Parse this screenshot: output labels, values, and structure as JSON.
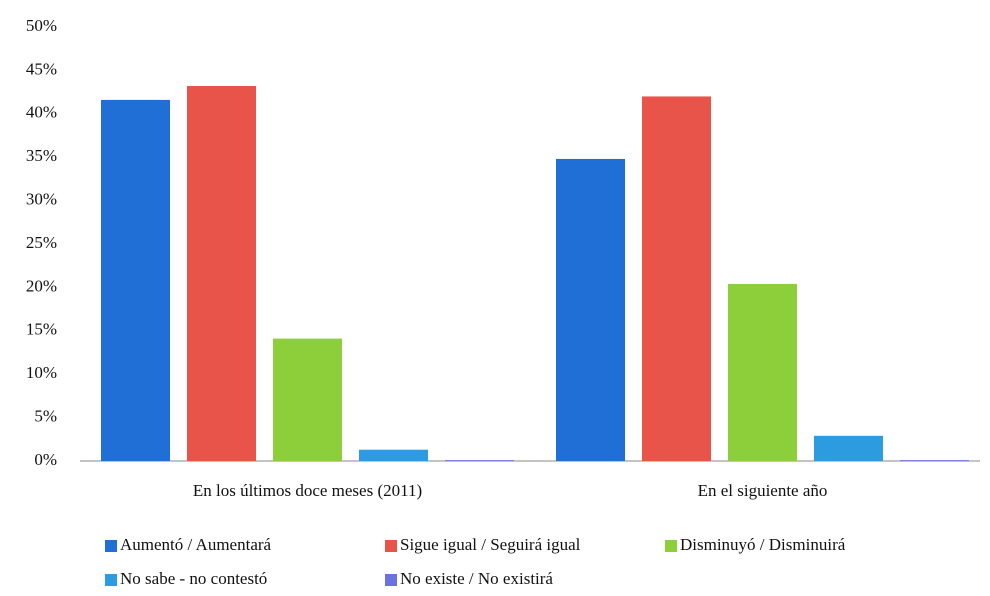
{
  "chart_data": {
    "type": "bar",
    "categories": [
      "En los últimos doce meses (2011)",
      "En el siguiente año"
    ],
    "series": [
      {
        "name": "Aumentó / Aumentará",
        "color": "#1f6fd6",
        "values": [
          41.6,
          34.8
        ]
      },
      {
        "name": "Sigue igual / Seguirá igual",
        "color": "#e8534a",
        "values": [
          43.2,
          42.0
        ]
      },
      {
        "name": "Disminuyó / Disminuirá",
        "color": "#8ccf3a",
        "values": [
          14.1,
          20.4
        ]
      },
      {
        "name": "No sabe - no contestó",
        "color": "#2d9be0",
        "values": [
          1.3,
          2.9
        ]
      },
      {
        "name": "No existe / No existirá",
        "color": "#6b72e0",
        "values": [
          0.1,
          0.1
        ]
      }
    ],
    "ylim": [
      0,
      50
    ],
    "yticks": [
      {
        "value": 0,
        "label": "0%"
      },
      {
        "value": 5,
        "label": "5%"
      },
      {
        "value": 10,
        "label": "10%"
      },
      {
        "value": 15,
        "label": "15%"
      },
      {
        "value": 20,
        "label": "20%"
      },
      {
        "value": 25,
        "label": "25%"
      },
      {
        "value": 30,
        "label": "30%"
      },
      {
        "value": 35,
        "label": "35%"
      },
      {
        "value": 40,
        "label": "40%"
      },
      {
        "value": 45,
        "label": "45%"
      },
      {
        "value": 50,
        "label": "50%"
      }
    ],
    "grid": false
  }
}
